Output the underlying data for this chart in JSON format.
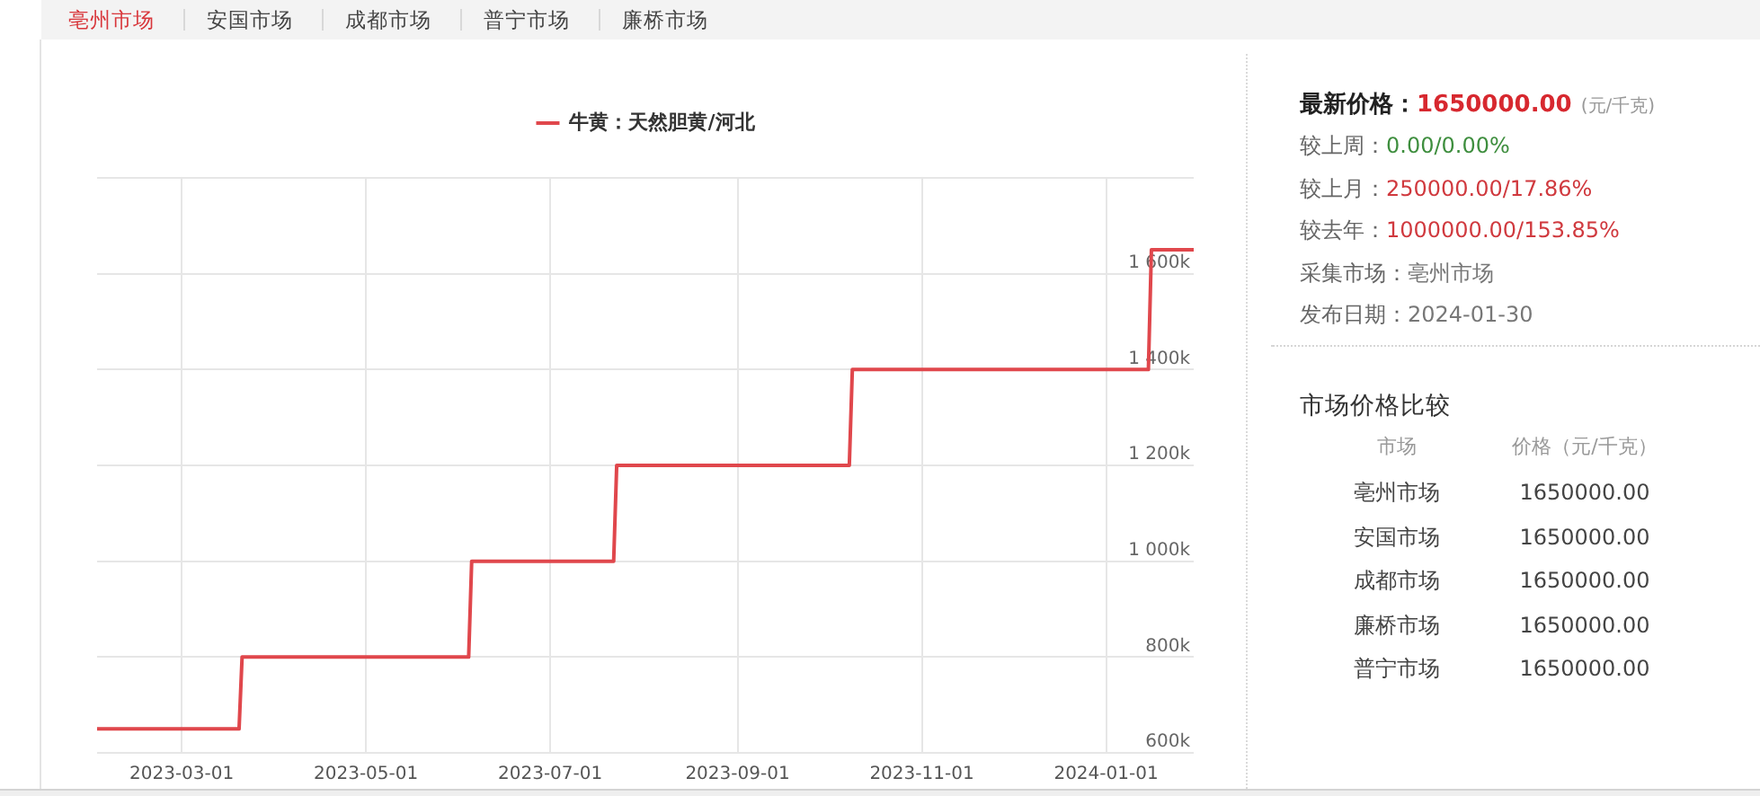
{
  "chart_data": [
    {
      "type": "line",
      "annotations": [
        "亳州市场",
        "安国市场",
        "成都市场",
        "普宁市场",
        "廉桥市场"
      ],
      "x": [
        "2023-02-01",
        "2023-03-20",
        "2023-03-21",
        "2023-06-04",
        "2023-06-05",
        "2023-07-22",
        "2023-07-23",
        "2023-10-08",
        "2023-10-09",
        "2024-01-15",
        "2024-01-16",
        "2024-01-30"
      ],
      "series": [
        {
          "name": "牛黄：天然胆黄/河北",
          "color": "#e0474c",
          "values": [
            650000,
            650000,
            800000,
            800000,
            1000000,
            1000000,
            1200000,
            1200000,
            1400000,
            1400000,
            1650000,
            1650000
          ]
        }
      ],
      "xlim": [
        "2023-02-01",
        "2024-01-30"
      ],
      "xticks": [
        "2023-03-01",
        "2023-05-01",
        "2023-07-01",
        "2023-09-01",
        "2023-11-01",
        "2024-01-01"
      ],
      "ylim": [
        600000,
        1800000
      ],
      "yticks": [
        {
          "value": 600000,
          "label": "600k"
        },
        {
          "value": 800000,
          "label": "800k"
        },
        {
          "value": 1000000,
          "label": "1 000k"
        },
        {
          "value": 1200000,
          "label": "1 200k"
        },
        {
          "value": 1400000,
          "label": "1 400k"
        },
        {
          "value": 1600000,
          "label": "1 600k"
        },
        {
          "value": 1800000,
          "label": null
        }
      ],
      "grid": true,
      "legend": "top",
      "marker": "none"
    },
    {
      "type": "other",
      "annotations": [
        "最新价格：",
        "1650000.00",
        "(元/千克)",
        "较上周：",
        "0.00/0.00%",
        "较上月：",
        "250000.00/17.86%",
        "较去年：",
        "1000000.00/153.85%",
        "采集市场：",
        "亳州市场",
        "发布日期：",
        "2024-01-30"
      ]
    },
    {
      "type": "other",
      "title": "市场价格比较",
      "annotations": [
        "市场",
        "价格（元/千克）",
        "亳州市场",
        "1650000.00",
        "安国市场",
        "1650000.00",
        "成都市场",
        "1650000.00",
        "廉桥市场",
        "1650000.00",
        "普宁市场",
        "1650000.00"
      ]
    }
  ]
}
